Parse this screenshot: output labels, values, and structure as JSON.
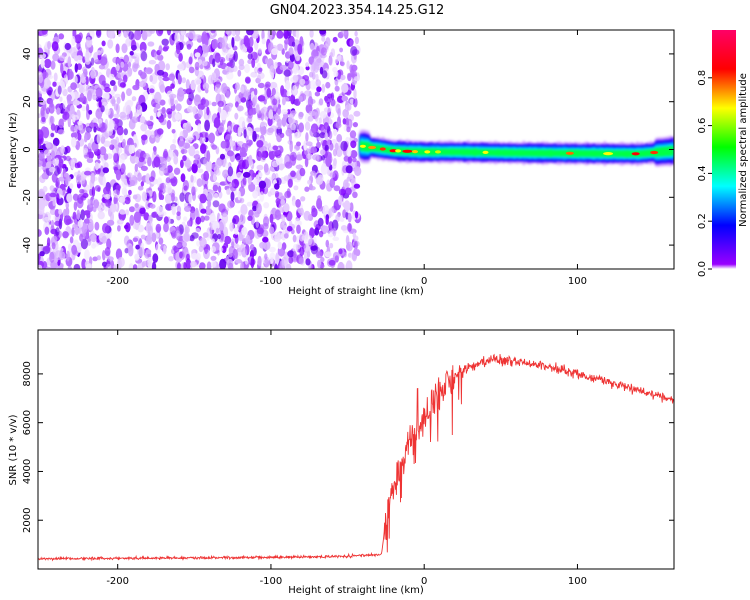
{
  "title": "GN04.2023.354.14.25.G12",
  "chart_data": [
    {
      "type": "heatmap",
      "xlabel": "Height of straight line (km)",
      "ylabel": "Frequency (Hz)",
      "xlim": [
        -252,
        163
      ],
      "ylim": [
        -50,
        50
      ],
      "x_ticks": [
        -200,
        -100,
        0,
        100
      ],
      "y_ticks": [
        -40,
        -20,
        0,
        20,
        40
      ],
      "noise_region_x": [
        -252,
        -43
      ],
      "signal_ridge": {
        "x": [
          -42,
          -30,
          -20,
          -10,
          0,
          20,
          40,
          60,
          80,
          100,
          120,
          140,
          163
        ],
        "freq": [
          1.5,
          0.5,
          -0.5,
          -0.8,
          -1.0,
          -1.0,
          -1.2,
          -1.4,
          -1.5,
          -1.6,
          -1.7,
          -1.8,
          -0.5
        ]
      },
      "colorbar": {
        "label": "Normalized spectral amplitude",
        "ticks": [
          0.0,
          0.2,
          0.4,
          0.6,
          0.8
        ],
        "range": [
          0,
          1
        ],
        "colors": [
          "#ffffff",
          "#9900ff",
          "#0000ff",
          "#00ffff",
          "#00ff00",
          "#ffff00",
          "#ff0000",
          "#ff0066"
        ]
      },
      "grid": false
    },
    {
      "type": "line",
      "xlabel": "Height of straight line (km)",
      "ylabel": "SNR (10 * v/v)",
      "xlim": [
        -252,
        163
      ],
      "ylim": [
        0,
        9800
      ],
      "x_ticks": [
        -200,
        -100,
        0,
        100
      ],
      "y_ticks": [
        2000,
        4000,
        6000,
        8000
      ],
      "series_color": "#ee3333",
      "envelope": {
        "x": [
          -252,
          -200,
          -150,
          -100,
          -50,
          -28,
          -25,
          -22,
          -20,
          -15,
          -10,
          -5,
          0,
          5,
          10,
          20,
          30,
          45,
          60,
          80,
          100,
          120,
          140,
          163
        ],
        "y": [
          420,
          440,
          460,
          480,
          520,
          600,
          1800,
          3000,
          3600,
          4200,
          5000,
          5600,
          6200,
          6800,
          7300,
          7900,
          8300,
          8600,
          8500,
          8300,
          8000,
          7700,
          7300,
          6900
        ]
      },
      "grid": false
    }
  ]
}
